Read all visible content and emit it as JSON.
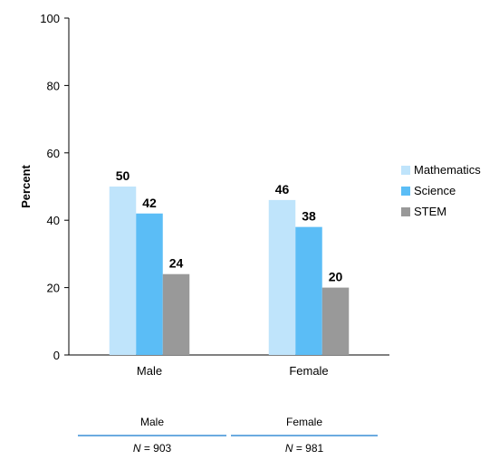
{
  "chart_data": {
    "type": "bar",
    "title": "",
    "xlabel": "",
    "ylabel": "Percent",
    "ylim": [
      0,
      100
    ],
    "yticks": [
      0,
      20,
      40,
      60,
      80,
      100
    ],
    "categories": [
      "Male",
      "Female"
    ],
    "series": [
      {
        "name": "Mathematics",
        "values": [
          50,
          46
        ],
        "color": "#bfe4fb"
      },
      {
        "name": "Science",
        "values": [
          42,
          38
        ],
        "color": "#5bbdf6"
      },
      {
        "name": "STEM",
        "values": [
          24,
          20
        ],
        "color": "#999999"
      }
    ],
    "grid": false,
    "legend": "right"
  },
  "footer": {
    "line_color": "#3a8fd6",
    "groups": [
      {
        "label": "Male",
        "n_label": "N",
        "n_equals": " = 903"
      },
      {
        "label": "Female",
        "n_label": "N",
        "n_equals": " = 981"
      }
    ]
  }
}
